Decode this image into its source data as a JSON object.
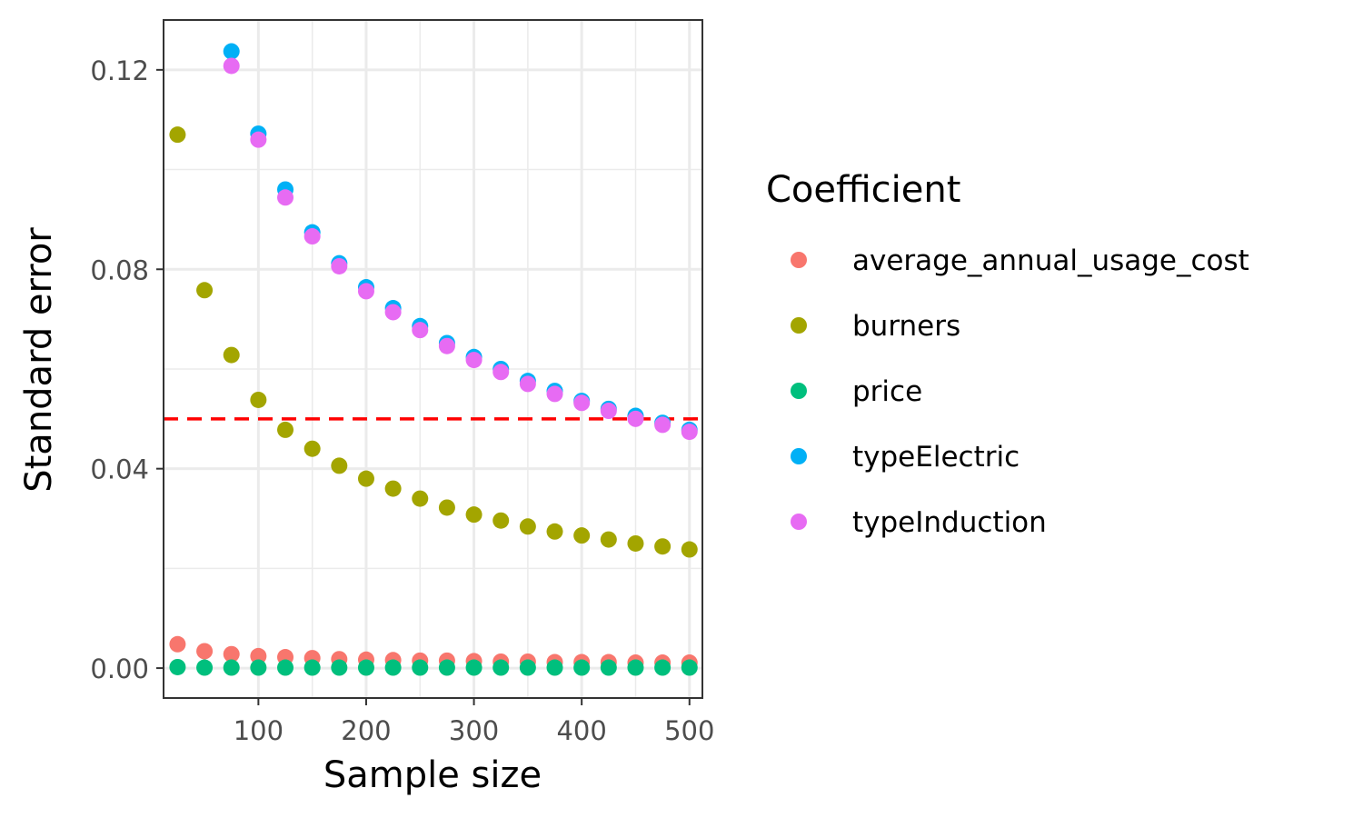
{
  "chart_data": {
    "type": "scatter",
    "xlabel": "Sample size",
    "ylabel": "Standard error",
    "xlim": [
      12,
      512
    ],
    "ylim": [
      -0.006,
      0.13
    ],
    "x_ticks": [
      100,
      200,
      300,
      400,
      500
    ],
    "x_minor_ticks": [
      150,
      250,
      350,
      450
    ],
    "y_ticks": [
      0.0,
      0.04,
      0.08,
      0.12
    ],
    "y_tick_labels": [
      "0.00",
      "0.04",
      "0.08",
      "0.12"
    ],
    "y_minor_ticks": [
      0.02,
      0.06,
      0.1
    ],
    "grid": true,
    "reference_line": {
      "y": 0.05,
      "color": "#ff0000",
      "style": "dashed"
    },
    "legend": {
      "title": "Coefficient",
      "position": "right"
    },
    "x": [
      25,
      50,
      75,
      100,
      125,
      150,
      175,
      200,
      225,
      250,
      275,
      300,
      325,
      350,
      375,
      400,
      425,
      450,
      475,
      500
    ],
    "series": [
      {
        "name": "average_annual_usage_cost",
        "color": "#f8766d",
        "values": [
          0.0048,
          0.0034,
          0.0028,
          0.0024,
          0.0022,
          0.002,
          0.0018,
          0.0017,
          0.0016,
          0.0015,
          0.0015,
          0.0014,
          0.0013,
          0.0013,
          0.0012,
          0.0012,
          0.0012,
          0.0011,
          0.0011,
          0.0011
        ]
      },
      {
        "name": "burners",
        "color": "#a3a500",
        "values": [
          0.107,
          0.0758,
          0.0628,
          0.0538,
          0.0478,
          0.044,
          0.0406,
          0.038,
          0.036,
          0.034,
          0.0322,
          0.0308,
          0.0296,
          0.0284,
          0.0274,
          0.0266,
          0.0258,
          0.025,
          0.0244,
          0.0238
        ]
      },
      {
        "name": "price",
        "color": "#00bf7d",
        "values": [
          0.0002,
          0.0001,
          0.0001,
          0.0001,
          0.0001,
          0.0001,
          0.0001,
          0.0001,
          0.0001,
          0.0001,
          0.0001,
          0.0001,
          0.0001,
          0.0001,
          0.0001,
          0.0001,
          0.0001,
          0.0001,
          0.0001,
          0.0001
        ]
      },
      {
        "name": "typeElectric",
        "color": "#00b0f6",
        "values": [
          null,
          null,
          0.1237,
          0.1072,
          0.096,
          0.0874,
          0.0812,
          0.0764,
          0.0722,
          0.0686,
          0.0652,
          0.0624,
          0.06,
          0.0576,
          0.0556,
          0.0536,
          0.052,
          0.0506,
          0.0492,
          0.0478
        ]
      },
      {
        "name": "typeInduction",
        "color": "#e76bf3",
        "values": [
          null,
          null,
          0.1208,
          0.106,
          0.0944,
          0.0866,
          0.0806,
          0.0756,
          0.0714,
          0.0678,
          0.0646,
          0.0618,
          0.0594,
          0.057,
          0.055,
          0.0532,
          0.0516,
          0.05,
          0.0488,
          0.0474
        ]
      }
    ]
  }
}
